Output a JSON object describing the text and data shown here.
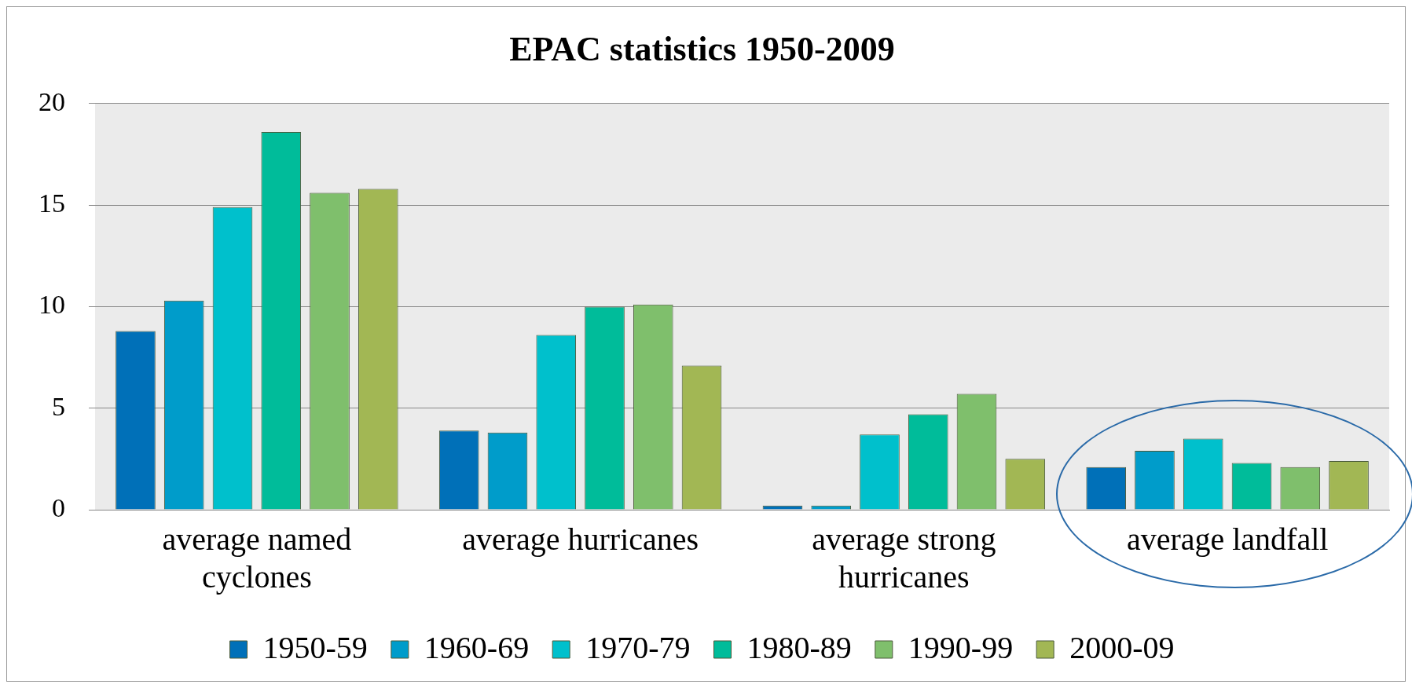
{
  "chart_data": {
    "type": "bar",
    "title": "EPAC statistics 1950-2009",
    "categories": [
      "average named cyclones",
      "average hurricanes",
      "average strong hurricanes",
      "average landfall"
    ],
    "series": [
      {
        "name": "1950-59",
        "color": "#0070b8",
        "values": [
          8.8,
          3.9,
          0.2,
          2.1
        ]
      },
      {
        "name": "1960-69",
        "color": "#009cca",
        "values": [
          10.3,
          3.8,
          0.2,
          2.9
        ]
      },
      {
        "name": "1970-79",
        "color": "#00c0cc",
        "values": [
          14.9,
          8.6,
          3.7,
          3.5
        ]
      },
      {
        "name": "1980-89",
        "color": "#00bc9a",
        "values": [
          18.6,
          10.0,
          4.7,
          2.3
        ]
      },
      {
        "name": "1990-99",
        "color": "#7fbf6c",
        "values": [
          15.6,
          10.1,
          5.7,
          2.1
        ]
      },
      {
        "name": "2000-09",
        "color": "#a2b754",
        "values": [
          15.8,
          7.1,
          2.5,
          2.4
        ]
      }
    ],
    "ylim": [
      0,
      20
    ],
    "yticks": [
      0,
      5,
      10,
      15,
      20
    ],
    "grid": "y",
    "legend": "bottom"
  }
}
